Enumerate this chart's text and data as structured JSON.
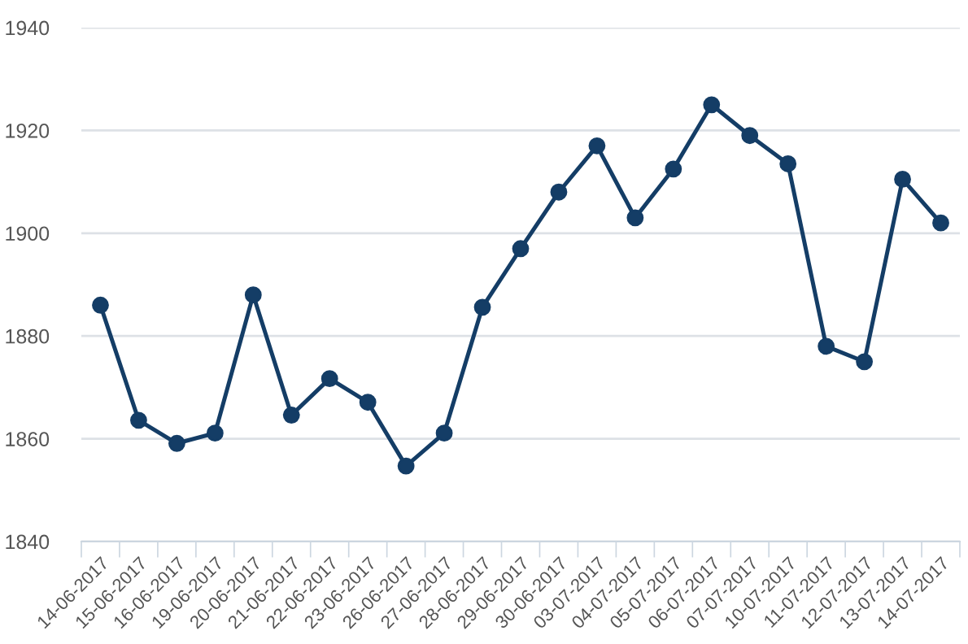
{
  "chart_data": {
    "type": "line",
    "categories": [
      "14-06-2017",
      "15-06-2017",
      "16-06-2017",
      "19-06-2017",
      "20-06-2017",
      "21-06-2017",
      "22-06-2017",
      "23-06-2017",
      "26-06-2017",
      "27-06-2017",
      "28-06-2017",
      "29-06-2017",
      "30-06-2017",
      "03-07-2017",
      "04-07-2017",
      "05-07-2017",
      "06-07-2017",
      "07-07-2017",
      "10-07-2017",
      "11-07-2017",
      "12-07-2017",
      "13-07-2017",
      "14-07-2017"
    ],
    "series": [
      {
        "color": "#143d66",
        "values": [
          1886,
          1863.6,
          1859.1,
          1861.1,
          1888,
          1864.6,
          1871.7,
          1867.1,
          1854.7,
          1861.1,
          1885.6,
          1897,
          1908,
          1917,
          1903,
          1912.5,
          1925,
          1919,
          1913.5,
          1878,
          1875,
          1910.5,
          1902
        ]
      }
    ],
    "ylim": [
      1840,
      1940
    ],
    "yticks": [
      1840,
      1860,
      1880,
      1900,
      1920,
      1940
    ],
    "grid": "y",
    "marker": "circle",
    "line_style": "solid"
  }
}
